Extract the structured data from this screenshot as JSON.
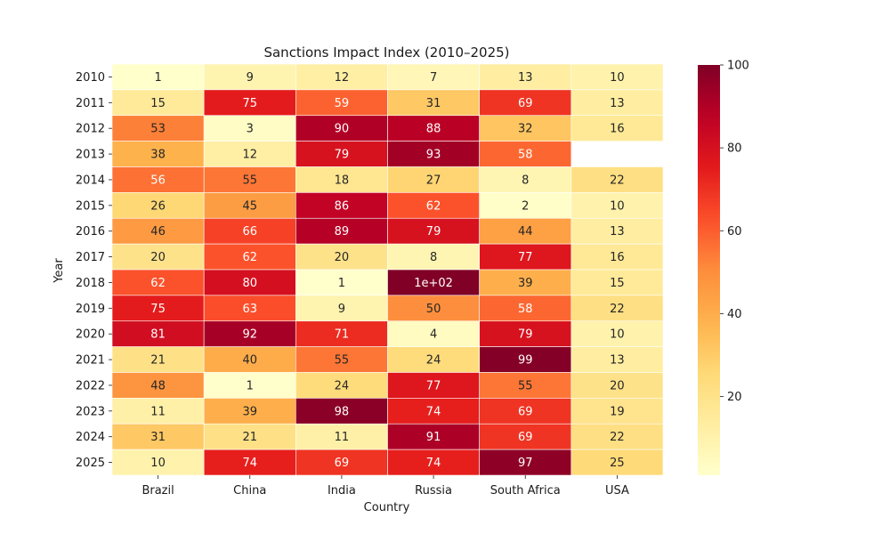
{
  "chart_data": {
    "type": "heatmap",
    "title": "Sanctions Impact Index (2010–2025)",
    "xlabel": "Country",
    "ylabel": "Year",
    "x_categories": [
      "Brazil",
      "China",
      "India",
      "Russia",
      "South Africa",
      "USA"
    ],
    "y_categories": [
      "2010",
      "2011",
      "2012",
      "2013",
      "2014",
      "2015",
      "2016",
      "2017",
      "2018",
      "2019",
      "2020",
      "2021",
      "2022",
      "2023",
      "2024",
      "2025"
    ],
    "values": [
      [
        1,
        9,
        12,
        7,
        13,
        10
      ],
      [
        15,
        75,
        59,
        31,
        69,
        13
      ],
      [
        53,
        3,
        90,
        88,
        32,
        16
      ],
      [
        38,
        12,
        79,
        93,
        58,
        null
      ],
      [
        56,
        55,
        18,
        27,
        8,
        22
      ],
      [
        26,
        45,
        86,
        62,
        2,
        10
      ],
      [
        46,
        66,
        89,
        79,
        44,
        13
      ],
      [
        20,
        62,
        20,
        8,
        77,
        16
      ],
      [
        62,
        80,
        1,
        100,
        39,
        15
      ],
      [
        75,
        63,
        9,
        50,
        58,
        22
      ],
      [
        81,
        92,
        71,
        4,
        79,
        10
      ],
      [
        21,
        40,
        55,
        24,
        99,
        13
      ],
      [
        48,
        1,
        24,
        77,
        55,
        20
      ],
      [
        11,
        39,
        98,
        74,
        69,
        19
      ],
      [
        31,
        21,
        11,
        91,
        69,
        22
      ],
      [
        10,
        74,
        69,
        74,
        97,
        25
      ]
    ],
    "cell_labels": [
      [
        "1",
        "9",
        "12",
        "7",
        "13",
        "10"
      ],
      [
        "15",
        "75",
        "59",
        "31",
        "69",
        "13"
      ],
      [
        "53",
        "3",
        "90",
        "88",
        "32",
        "16"
      ],
      [
        "38",
        "12",
        "79",
        "93",
        "58",
        ""
      ],
      [
        "56",
        "55",
        "18",
        "27",
        "8",
        "22"
      ],
      [
        "26",
        "45",
        "86",
        "62",
        "2",
        "10"
      ],
      [
        "46",
        "66",
        "89",
        "79",
        "44",
        "13"
      ],
      [
        "20",
        "62",
        "20",
        "8",
        "77",
        "16"
      ],
      [
        "62",
        "80",
        "1",
        "1e+02",
        "39",
        "15"
      ],
      [
        "75",
        "63",
        "9",
        "50",
        "58",
        "22"
      ],
      [
        "81",
        "92",
        "71",
        "4",
        "79",
        "10"
      ],
      [
        "21",
        "40",
        "55",
        "24",
        "99",
        "13"
      ],
      [
        "48",
        "1",
        "24",
        "77",
        "55",
        "20"
      ],
      [
        "11",
        "39",
        "98",
        "74",
        "69",
        "19"
      ],
      [
        "31",
        "21",
        "11",
        "91",
        "69",
        "22"
      ],
      [
        "10",
        "74",
        "69",
        "74",
        "97",
        "25"
      ]
    ],
    "vmin": 1,
    "vmax": 100,
    "colormap": "YlOrRd",
    "colorbar_ticks": [
      "20",
      "40",
      "60",
      "80",
      "100"
    ],
    "colorbar_tick_values": [
      20,
      40,
      60,
      80,
      100
    ],
    "grid": false,
    "legend": "colorbar-right"
  }
}
